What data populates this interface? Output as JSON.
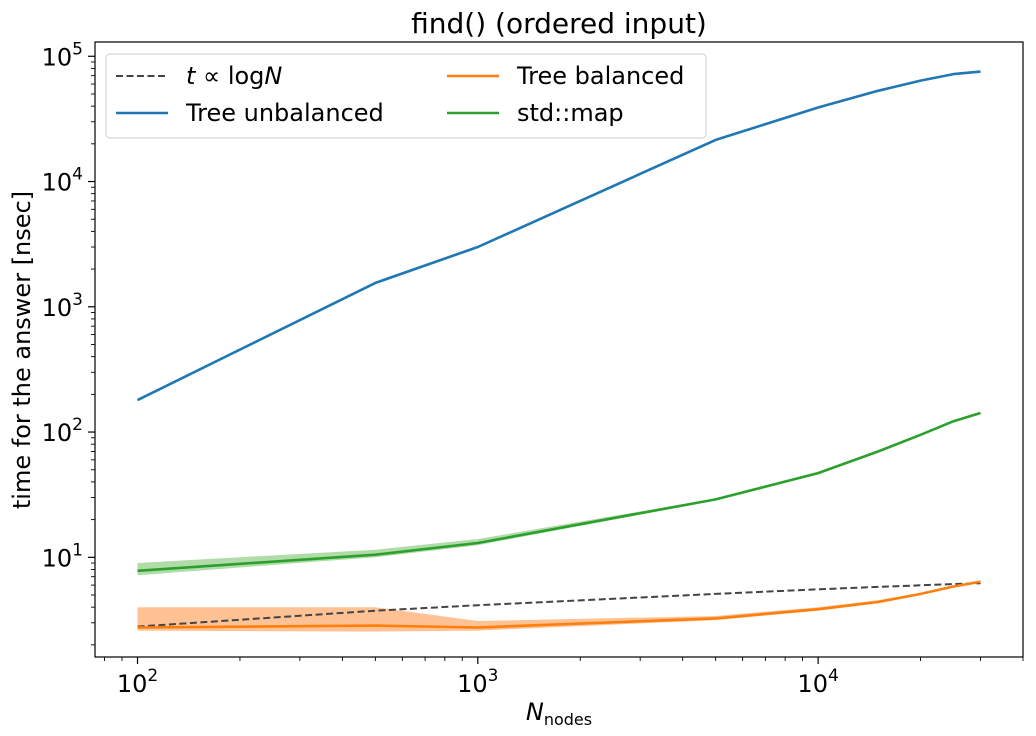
{
  "chart_data": {
    "type": "line",
    "title": "find() (ordered input)",
    "xlabel": {
      "main": "N",
      "sub": "nodes"
    },
    "ylabel": "time for the answer [nsec]",
    "xscale": "log",
    "yscale": "log",
    "xlim": [
      75,
      40000
    ],
    "ylim": [
      1.6,
      130000
    ],
    "grid": false,
    "legend_position": "top-left",
    "x_ticks": [
      {
        "base": "10",
        "exp": "2",
        "value": 100
      },
      {
        "base": "10",
        "exp": "3",
        "value": 1000
      },
      {
        "base": "10",
        "exp": "4",
        "value": 10000
      }
    ],
    "y_ticks": [
      {
        "base": "10",
        "exp": "1",
        "value": 10
      },
      {
        "base": "10",
        "exp": "2",
        "value": 100
      },
      {
        "base": "10",
        "exp": "3",
        "value": 1000
      },
      {
        "base": "10",
        "exp": "4",
        "value": 10000
      },
      {
        "base": "10",
        "exp": "5",
        "value": 100000
      }
    ],
    "series": [
      {
        "name": "t ∝ logN",
        "legend": {
          "main": "t ∝ log",
          "italic_var": "N"
        },
        "color": "#444444",
        "dashed": true,
        "x": [
          100,
          500,
          1000,
          5000,
          10000,
          15000,
          20000,
          25000,
          30000
        ],
        "y": [
          2.8,
          3.75,
          4.15,
          5.1,
          5.55,
          5.8,
          5.98,
          6.12,
          6.2
        ]
      },
      {
        "name": "Tree unbalanced",
        "color": "#1f77b4",
        "x": [
          100,
          500,
          1000,
          5000,
          10000,
          15000,
          20000,
          25000,
          30000
        ],
        "y": [
          180,
          1550,
          3000,
          21500,
          39000,
          53000,
          64000,
          72000,
          75500
        ]
      },
      {
        "name": "Tree balanced",
        "color": "#ff7f0e",
        "band_color": "#ffbb88",
        "x": [
          100,
          500,
          1000,
          5000,
          10000,
          15000,
          20000,
          25000,
          30000
        ],
        "y": [
          2.75,
          2.85,
          2.75,
          3.25,
          3.85,
          4.4,
          5.1,
          5.85,
          6.4
        ],
        "lower": [
          2.6,
          2.55,
          2.6,
          3.15,
          3.75,
          4.3,
          5.0,
          5.75,
          6.2
        ],
        "upper": [
          4.0,
          4.0,
          3.1,
          3.4,
          4.0,
          4.55,
          5.2,
          5.95,
          6.5
        ]
      },
      {
        "name": "std::map",
        "color": "#2ca02c",
        "band_color": "#a8d8a0",
        "x": [
          100,
          500,
          1000,
          5000,
          10000,
          15000,
          20000,
          25000,
          30000
        ],
        "y": [
          7.8,
          10.5,
          13.0,
          29.0,
          47.0,
          70.0,
          95.0,
          122.0,
          142.0
        ],
        "lower": [
          7.2,
          10.0,
          12.5,
          28.5,
          46.0,
          69.0,
          94.0,
          120.0,
          140.0
        ],
        "upper": [
          9.0,
          11.5,
          14.0,
          29.5,
          48.0,
          71.0,
          96.0,
          124.0,
          144.0
        ]
      }
    ]
  }
}
